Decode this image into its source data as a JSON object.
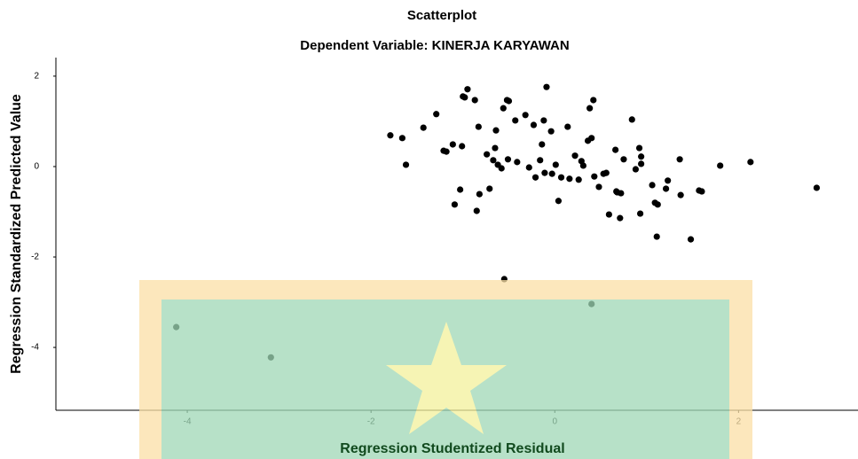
{
  "chart_data": {
    "type": "scatter",
    "title": "Scatterplot",
    "subtitle": "Dependent Variable: KINERJA KARYAWAN",
    "x_label": "Regression Studentized Residual",
    "y_label": "Regression Standardized Predicted Value",
    "color": "#000000",
    "x": [
      -1.79,
      -1.66,
      -1.62,
      -1.43,
      -1.29,
      -1.21,
      -1.18,
      -1.11,
      -1.09,
      -1.03,
      -1.01,
      -1.0,
      -0.98,
      -0.95,
      -0.87,
      -0.85,
      -0.82,
      -0.83,
      -0.74,
      -0.71,
      -0.67,
      -0.65,
      -0.64,
      -0.62,
      -0.58,
      -0.56,
      -0.52,
      -0.5,
      -0.51,
      -0.43,
      -0.41,
      -0.32,
      -0.28,
      -0.23,
      -0.21,
      -0.16,
      -0.14,
      -0.12,
      -0.09,
      -0.11,
      -0.04,
      -0.03,
      0.01,
      0.04,
      0.07,
      0.14,
      0.16,
      0.22,
      0.26,
      0.29,
      0.31,
      0.36,
      0.38,
      0.4,
      0.42,
      0.43,
      0.48,
      0.53,
      0.56,
      0.59,
      0.66,
      0.67,
      0.68,
      0.71,
      0.72,
      0.75,
      0.84,
      0.88,
      0.92,
      0.93,
      0.94,
      0.94,
      1.06,
      1.09,
      1.11,
      1.12,
      1.21,
      1.23,
      1.36,
      1.37,
      1.48,
      1.57,
      1.6,
      1.8,
      2.13,
      2.85,
      -0.55,
      0.4,
      -4.12,
      -3.09
    ],
    "values": [
      0.69,
      0.63,
      0.04,
      0.86,
      1.16,
      0.35,
      0.33,
      0.49,
      -0.84,
      -0.51,
      0.45,
      1.55,
      1.53,
      1.71,
      1.47,
      -0.98,
      -0.61,
      0.88,
      0.27,
      -0.49,
      0.14,
      0.41,
      0.8,
      0.04,
      -0.04,
      1.29,
      1.47,
      1.45,
      0.16,
      1.02,
      0.1,
      1.14,
      -0.02,
      0.92,
      -0.24,
      0.14,
      0.49,
      1.02,
      1.76,
      -0.14,
      0.78,
      -0.16,
      0.04,
      -0.76,
      -0.24,
      0.88,
      -0.27,
      0.24,
      -0.29,
      0.12,
      0.02,
      0.57,
      1.29,
      0.63,
      1.47,
      -0.22,
      -0.45,
      -0.16,
      -0.14,
      -1.06,
      0.37,
      -0.55,
      -0.57,
      -1.14,
      -0.59,
      0.16,
      1.04,
      -0.06,
      0.41,
      -1.04,
      0.06,
      0.22,
      -0.41,
      -0.8,
      -1.55,
      -0.84,
      -0.49,
      -0.31,
      0.16,
      -0.63,
      -1.61,
      -0.53,
      -0.55,
      0.02,
      0.1,
      -0.47,
      -2.49,
      -3.04,
      -3.55,
      -4.22
    ],
    "xlim": [
      -5.43,
      3.3
    ],
    "ylim": [
      -5.39,
      2.41
    ],
    "xticks": [
      -4,
      -2,
      0,
      2
    ],
    "yticks": [
      2,
      0,
      -2,
      -4
    ]
  }
}
